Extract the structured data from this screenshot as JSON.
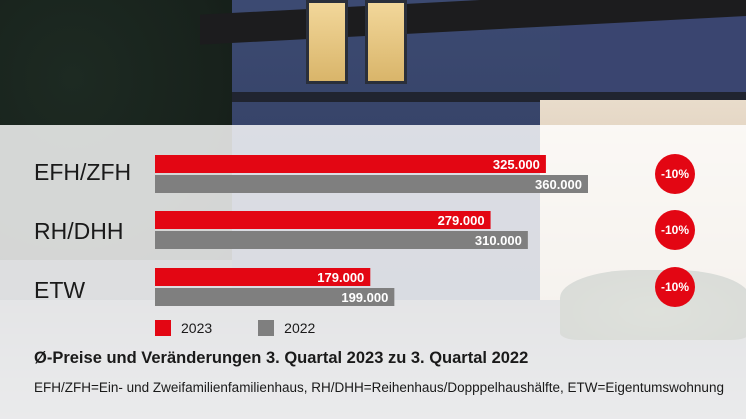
{
  "colors": {
    "series_2023": "#e30613",
    "series_2022": "#7f7f7f",
    "badge": "#e30613"
  },
  "chart_data": {
    "type": "bar",
    "orientation": "horizontal",
    "categories": [
      "EFH/ZFH",
      "RH/DHH",
      "ETW"
    ],
    "series": [
      {
        "name": "2023",
        "values": [
          325000,
          279000,
          179000
        ],
        "labels": [
          "325.000",
          "279.000",
          "179.000"
        ]
      },
      {
        "name": "2022",
        "values": [
          360000,
          310000,
          199000
        ],
        "labels": [
          "360.000",
          "310.000",
          "199.000"
        ]
      }
    ],
    "changes": [
      "-10%",
      "-10%",
      "-10%"
    ],
    "title": "Ø-Preise und Veränderungen 3. Quartal 2023 zu 3. Quartal 2022",
    "note": "EFH/ZFH=Ein- und Zweifamilienfamilienhaus, RH/DHH=Reihenhaus/Dopppelhaushälfte, ETW=Eigentumswohnung",
    "legend": "bottom-left",
    "grid": false
  }
}
